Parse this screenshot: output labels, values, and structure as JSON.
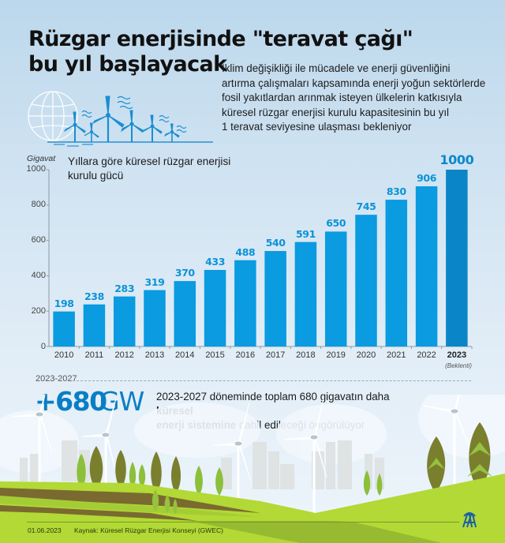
{
  "header": {
    "title_line1": "Rüzgar enerjisinde \"teravat çağı\"",
    "title_line2": "bu yıl başlayacak",
    "intro_lines": [
      "İklim değişikliği ile mücadele ve enerji güvenliğini",
      "artırma çalışmaları kapsamında enerji yoğun sektörlerde",
      "fosil yakıtlardan arınmak isteyen ülkelerin katkısıyla",
      "küresel rüzgar enerjisi kurulu kapasitesinin bu yıl",
      "1 teravat seviyesine ulaşması bekleniyor"
    ]
  },
  "illustration": {
    "icon": "globe-and-wind-turbines-icon"
  },
  "chart": {
    "title_line1": "Yıllara göre küresel rüzgar enerjisi",
    "title_line2": "kurulu gücü",
    "y_unit": "Gigavat",
    "y_ticks": [
      "0",
      "200",
      "400",
      "600",
      "800",
      "1000"
    ],
    "labels": [
      "198",
      "238",
      "283",
      "319",
      "370",
      "433",
      "488",
      "540",
      "591",
      "650",
      "745",
      "830",
      "906",
      "1000"
    ],
    "years": [
      "2010",
      "2011",
      "2012",
      "2013",
      "2014",
      "2015",
      "2016",
      "2017",
      "2018",
      "2019",
      "2020",
      "2021",
      "2022",
      "2023"
    ],
    "last_note": "(Beklenti)",
    "colors": {
      "bar": "#0a9be0",
      "bar_highlight": "#0a86c8",
      "label": "#0a93d8"
    }
  },
  "chart_data": {
    "type": "bar",
    "title": "Yıllara göre küresel rüzgar enerjisi kurulu gücü",
    "xlabel": "",
    "ylabel": "Gigavat",
    "categories": [
      "2010",
      "2011",
      "2012",
      "2013",
      "2014",
      "2015",
      "2016",
      "2017",
      "2018",
      "2019",
      "2020",
      "2021",
      "2022",
      "2023 (Beklenti)"
    ],
    "values": [
      198,
      238,
      283,
      319,
      370,
      433,
      488,
      540,
      591,
      650,
      745,
      830,
      906,
      1000
    ],
    "ylim": [
      0,
      1000
    ],
    "y_ticks": [
      0,
      200,
      400,
      600,
      800,
      1000
    ],
    "grid": false,
    "legend": null,
    "annotations": [
      "2023 (Beklenti) — expected value highlighted in darker blue"
    ]
  },
  "forecast": {
    "period": "2023-2027",
    "value": "+680",
    "unit": "GW",
    "text_plain1": "2023-2027 döneminde toplam 680 gigavatın daha ",
    "text_bold1": "küresel",
    "text_bold2": "enerji sistemine",
    "text_plain2": " dahil edileceği öngörülüyor"
  },
  "footer": {
    "date": "01.06.2023",
    "source": "Kaynak: Küresel Rüzgar Enerjisi Konseyi (GWEC)",
    "logo": "AA"
  }
}
